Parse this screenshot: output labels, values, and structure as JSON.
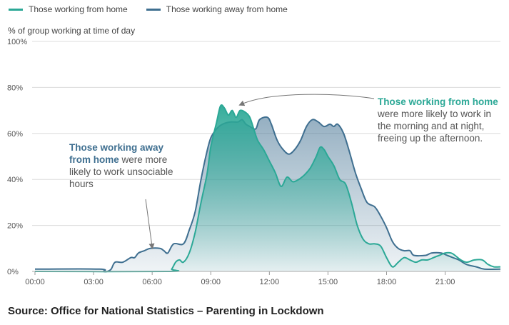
{
  "colors": {
    "home": "#2ba896",
    "away": "#3f6f90",
    "grid": "#dcdcdc",
    "text": "#555555"
  },
  "legend": {
    "home": "Those working from home",
    "away": "Those working away from home"
  },
  "annotations": {
    "away_bold": "Those working away from home",
    "away_rest": "were more likely to work unsociable hours",
    "home_bold": "Those working from home",
    "home_rest": "were more likely to work in the morning and at night, freeing up the afternoon."
  },
  "source": "Source: Office for National Statistics – Parenting in Lockdown",
  "chart_data": {
    "type": "area",
    "title": "",
    "ylabel": "% of group working at time of day",
    "xlabel": "",
    "x_unit": "hours since 00:00",
    "xlim": [
      0,
      23.83
    ],
    "ylim": [
      0,
      100
    ],
    "yticks": [
      0,
      20,
      40,
      60,
      80,
      100
    ],
    "ytick_labels": [
      "0%",
      "20%",
      "40%",
      "60%",
      "80%",
      "100%"
    ],
    "xticks": [
      0,
      3,
      6,
      9,
      12,
      15,
      18,
      21
    ],
    "xtick_labels": [
      "00:00",
      "03:00",
      "06:00",
      "09:00",
      "12:00",
      "15:00",
      "18:00",
      "21:00"
    ],
    "series": [
      {
        "name": "Those working away from home",
        "key": "away",
        "points": [
          [
            0,
            1
          ],
          [
            3.3,
            1
          ],
          [
            3.5,
            0
          ],
          [
            3.7,
            0
          ],
          [
            3.9,
            1
          ],
          [
            4.1,
            4
          ],
          [
            4.5,
            4
          ],
          [
            4.9,
            6
          ],
          [
            5.1,
            6
          ],
          [
            5.3,
            8
          ],
          [
            5.6,
            9
          ],
          [
            5.9,
            10
          ],
          [
            6.4,
            10
          ],
          [
            6.6,
            9
          ],
          [
            6.8,
            8
          ],
          [
            7.1,
            12
          ],
          [
            7.6,
            12
          ],
          [
            7.9,
            18
          ],
          [
            8.2,
            26
          ],
          [
            8.5,
            40
          ],
          [
            8.8,
            52
          ],
          [
            9.0,
            58
          ],
          [
            9.3,
            62
          ],
          [
            9.6,
            64
          ],
          [
            10.0,
            65
          ],
          [
            10.4,
            65
          ],
          [
            10.6,
            66
          ],
          [
            10.8,
            64
          ],
          [
            11.0,
            63
          ],
          [
            11.3,
            62
          ],
          [
            11.5,
            66
          ],
          [
            11.9,
            67
          ],
          [
            12.1,
            64
          ],
          [
            12.4,
            57
          ],
          [
            12.7,
            53
          ],
          [
            13.0,
            51
          ],
          [
            13.3,
            53
          ],
          [
            13.6,
            57
          ],
          [
            13.9,
            63
          ],
          [
            14.2,
            66
          ],
          [
            14.5,
            65
          ],
          [
            14.8,
            63
          ],
          [
            15.1,
            64
          ],
          [
            15.3,
            63
          ],
          [
            15.5,
            64
          ],
          [
            15.8,
            60
          ],
          [
            16.1,
            52
          ],
          [
            16.4,
            43
          ],
          [
            16.7,
            36
          ],
          [
            17.0,
            30
          ],
          [
            17.4,
            28
          ],
          [
            17.7,
            24
          ],
          [
            18.0,
            19
          ],
          [
            18.3,
            13
          ],
          [
            18.6,
            10
          ],
          [
            18.9,
            9
          ],
          [
            19.2,
            9
          ],
          [
            19.4,
            7
          ],
          [
            20.0,
            7
          ],
          [
            20.3,
            8
          ],
          [
            20.8,
            8
          ],
          [
            21.1,
            7
          ],
          [
            21.4,
            6
          ],
          [
            21.7,
            5
          ],
          [
            22.1,
            3
          ],
          [
            22.6,
            2
          ],
          [
            23.0,
            1
          ],
          [
            23.83,
            1
          ]
        ]
      },
      {
        "name": "Those working from home",
        "key": "home",
        "points": [
          [
            0,
            0
          ],
          [
            6.8,
            0
          ],
          [
            7.0,
            1
          ],
          [
            7.2,
            4
          ],
          [
            7.4,
            5
          ],
          [
            7.6,
            4
          ],
          [
            7.9,
            8
          ],
          [
            8.2,
            17
          ],
          [
            8.5,
            30
          ],
          [
            8.8,
            42
          ],
          [
            9.0,
            54
          ],
          [
            9.3,
            65
          ],
          [
            9.5,
            72
          ],
          [
            9.7,
            71
          ],
          [
            9.9,
            68
          ],
          [
            10.1,
            70
          ],
          [
            10.3,
            67
          ],
          [
            10.5,
            70
          ],
          [
            10.8,
            69
          ],
          [
            11.0,
            67
          ],
          [
            11.2,
            62
          ],
          [
            11.4,
            57
          ],
          [
            11.7,
            53
          ],
          [
            12.0,
            48
          ],
          [
            12.3,
            43
          ],
          [
            12.6,
            37
          ],
          [
            12.9,
            41
          ],
          [
            13.2,
            39
          ],
          [
            13.5,
            40
          ],
          [
            13.8,
            42
          ],
          [
            14.1,
            45
          ],
          [
            14.4,
            50
          ],
          [
            14.6,
            54
          ],
          [
            14.8,
            53
          ],
          [
            15.0,
            50
          ],
          [
            15.3,
            46
          ],
          [
            15.6,
            40
          ],
          [
            15.9,
            38
          ],
          [
            16.2,
            30
          ],
          [
            16.5,
            20
          ],
          [
            16.8,
            14
          ],
          [
            17.1,
            12
          ],
          [
            17.4,
            12
          ],
          [
            17.7,
            11
          ],
          [
            18.0,
            6
          ],
          [
            18.3,
            2
          ],
          [
            18.6,
            4
          ],
          [
            18.9,
            6
          ],
          [
            19.2,
            5
          ],
          [
            19.5,
            4
          ],
          [
            19.8,
            5
          ],
          [
            20.1,
            5
          ],
          [
            20.4,
            6
          ],
          [
            20.7,
            7
          ],
          [
            21.0,
            8
          ],
          [
            21.3,
            8
          ],
          [
            21.5,
            7
          ],
          [
            21.8,
            5
          ],
          [
            22.1,
            4
          ],
          [
            22.5,
            5
          ],
          [
            22.9,
            5
          ],
          [
            23.2,
            3
          ],
          [
            23.5,
            2
          ],
          [
            23.83,
            2
          ]
        ]
      }
    ]
  }
}
